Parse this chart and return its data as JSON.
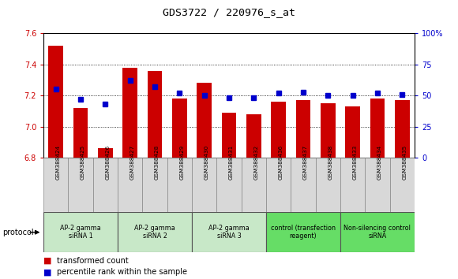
{
  "title": "GDS3722 / 220976_s_at",
  "samples": [
    "GSM388424",
    "GSM388425",
    "GSM388426",
    "GSM388427",
    "GSM388428",
    "GSM388429",
    "GSM388430",
    "GSM388431",
    "GSM388432",
    "GSM388436",
    "GSM388437",
    "GSM388438",
    "GSM388433",
    "GSM388434",
    "GSM388435"
  ],
  "transformed_count": [
    7.52,
    7.12,
    6.86,
    7.38,
    7.36,
    7.18,
    7.28,
    7.09,
    7.08,
    7.16,
    7.17,
    7.15,
    7.13,
    7.18,
    7.17
  ],
  "percentile_rank": [
    55,
    47,
    43,
    62,
    57,
    52,
    50,
    48,
    48,
    52,
    53,
    50,
    50,
    52,
    51
  ],
  "groups": [
    {
      "label": "AP-2 gamma\nsiRNA 1",
      "indices": [
        0,
        1,
        2
      ],
      "bg": "#c8e8c8"
    },
    {
      "label": "AP-2 gamma\nsiRNA 2",
      "indices": [
        3,
        4,
        5
      ],
      "bg": "#c8e8c8"
    },
    {
      "label": "AP-2 gamma\nsiRNA 3",
      "indices": [
        6,
        7,
        8
      ],
      "bg": "#c8e8c8"
    },
    {
      "label": "control (transfection\nreagent)",
      "indices": [
        9,
        10,
        11
      ],
      "bg": "#66dd66"
    },
    {
      "label": "Non-silencing control\nsiRNA",
      "indices": [
        12,
        13,
        14
      ],
      "bg": "#66dd66"
    }
  ],
  "ylim_left": [
    6.8,
    7.6
  ],
  "ylim_right": [
    0,
    100
  ],
  "yticks_left": [
    6.8,
    7.0,
    7.2,
    7.4,
    7.6
  ],
  "yticks_right": [
    0,
    25,
    50,
    75,
    100
  ],
  "bar_color": "#cc0000",
  "dot_color": "#0000cc",
  "bg_color": "#ffffff",
  "grid_color": "#000000",
  "tick_label_color_left": "#cc0000",
  "tick_label_color_right": "#0000cc",
  "protocol_label": "protocol",
  "legend_tc": "transformed count",
  "legend_pr": "percentile rank within the sample",
  "right_axis_label": "100%"
}
